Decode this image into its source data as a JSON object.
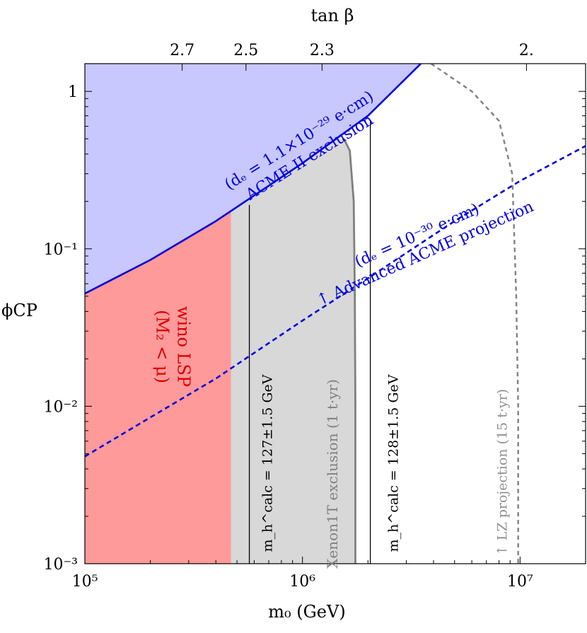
{
  "chart_data": {
    "type": "line",
    "scale": {
      "x": "log",
      "y": "log"
    },
    "xlim": [
      100000,
      20000000
    ],
    "ylim": [
      0.001,
      1.5
    ],
    "xlabel": "m₀ (GeV)",
    "ylabel": "ϕCP",
    "top_axis": {
      "label": "tan β",
      "ticks": [
        {
          "label": "2.7",
          "m0": 280000
        },
        {
          "label": "2.5",
          "m0": 550000
        },
        {
          "label": "2.3",
          "m0": 1230000
        },
        {
          "label": "2.",
          "m0": 10700000
        }
      ]
    },
    "x_ticks": [
      {
        "value": 100000,
        "label": "10⁵"
      },
      {
        "value": 1000000,
        "label": "10⁶"
      },
      {
        "value": 10000000,
        "label": "10⁷"
      }
    ],
    "y_ticks": [
      {
        "value": 1,
        "label": "1"
      },
      {
        "value": 0.1,
        "label": "10⁻¹"
      },
      {
        "value": 0.01,
        "label": "10⁻²"
      },
      {
        "value": 0.001,
        "label": "10⁻³"
      }
    ],
    "regions": [
      {
        "name": "wino LSP",
        "color": "#ff9a9a",
        "x": [
          100000,
          470000
        ],
        "upper_bound": "ACME II exclusion"
      },
      {
        "name": "Xenon1T exclusion",
        "color": "#d8d8d8",
        "x": [
          470000,
          1750000
        ],
        "upper": 0.5
      },
      {
        "name": "ACME II excluded",
        "color": "#c8c8ff"
      }
    ],
    "series": [
      {
        "name": "ACME II exclusion",
        "style": "solid",
        "color": "#0000dd",
        "x": [
          100000,
          200000,
          400000,
          1000000,
          2000000,
          3500000
        ],
        "y": [
          0.052,
          0.085,
          0.15,
          0.35,
          0.7,
          1.5
        ]
      },
      {
        "name": "Advanced ACME projection",
        "style": "dashed",
        "color": "#0000dd",
        "x": [
          100000,
          200000,
          400000,
          1000000,
          2000000,
          5000000,
          10000000,
          20000000
        ],
        "y": [
          0.0048,
          0.0085,
          0.015,
          0.035,
          0.065,
          0.15,
          0.27,
          0.45
        ]
      },
      {
        "name": "Xenon1T exclusion (1 t·yr)",
        "style": "solid",
        "color": "#808080",
        "x": [
          1550000,
          1650000,
          1720000,
          1740000,
          1750000,
          1750000
        ],
        "y": [
          0.5,
          0.42,
          0.2,
          0.05,
          0.01,
          0.001
        ]
      },
      {
        "name": "LZ projection (15 t·yr)",
        "style": "dashed",
        "color": "#808080",
        "x": [
          3900000,
          6000000,
          8000000,
          9200000,
          9600000,
          9800000,
          9800000
        ],
        "y": [
          1.5,
          1.0,
          0.65,
          0.3,
          0.05,
          0.01,
          0.001
        ]
      },
      {
        "name": "m_h^calc = 127±1.5 GeV",
        "style": "solid",
        "color": "#000000",
        "x": [
          570000,
          570000
        ],
        "y": [
          0.001,
          0.19
        ]
      },
      {
        "name": "m_h^calc = 128±1.5 GeV",
        "style": "solid",
        "color": "#000000",
        "x": [
          2050000,
          2050000
        ],
        "y": [
          0.001,
          0.65
        ]
      }
    ],
    "annotations": [
      {
        "lines": [
          "wino LSP",
          "(M₂ < μ)"
        ],
        "color": "#dd0000"
      },
      {
        "lines": [
          "(dₑ = 1.1×10⁻²⁹  e·cm)",
          "ACME II exclusion"
        ],
        "color": "#0000dd"
      },
      {
        "lines": [
          "(dₑ = 10⁻³⁰  e·cm)",
          "↑ Advanced ACME projection"
        ],
        "color": "#0000dd"
      },
      {
        "lines": [
          "Xenon1T exclusion (1 t·yr)"
        ],
        "color": "#808080"
      },
      {
        "lines": [
          "↑ LZ projection (15 t·yr)"
        ],
        "color": "#909090"
      },
      {
        "lines": [
          "m_h^calc = 127±1.5 GeV"
        ],
        "color": "#000000"
      },
      {
        "lines": [
          "m_h^calc = 128±1.5 GeV"
        ],
        "color": "#000000"
      }
    ]
  }
}
